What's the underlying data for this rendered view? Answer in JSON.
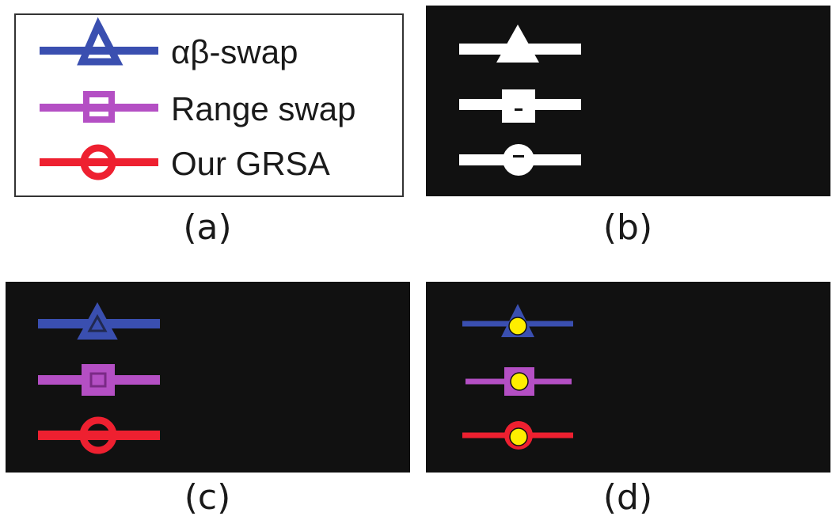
{
  "captions": {
    "a": "(a)",
    "b": "(b)",
    "c": "(c)",
    "d": "(d)"
  },
  "legend": {
    "entries": [
      {
        "label": "αβ-swap",
        "marker": "triangle",
        "color": "#3a4fb0"
      },
      {
        "label": "Range swap",
        "marker": "square",
        "color": "#b44fc4"
      },
      {
        "label": "Our GRSA",
        "marker": "circle",
        "color": "#ee2030"
      }
    ]
  },
  "colors": {
    "panel_background": "#111111",
    "mask_white": "#ffffff",
    "keypoint_yellow": "#ffee00",
    "frame": "#333333"
  }
}
